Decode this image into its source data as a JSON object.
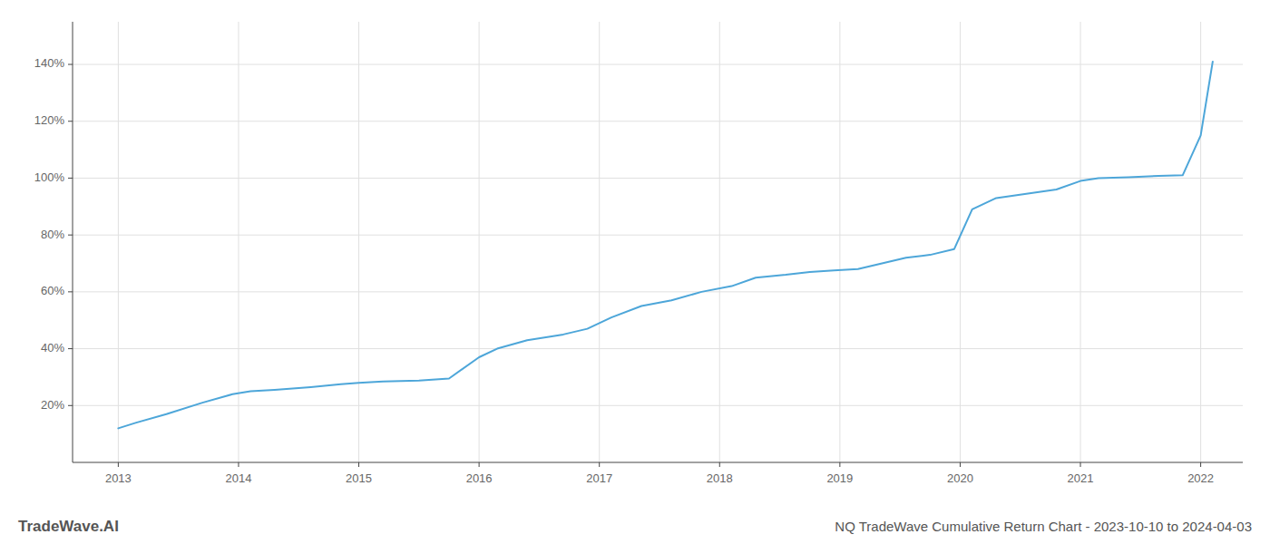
{
  "chart_data": {
    "type": "line",
    "title": "NQ TradeWave Cumulative Return Chart - 2023-10-10 to 2024-04-03",
    "annotations": [
      "TradeWave.AI"
    ],
    "x": [
      2013.0,
      2013.15,
      2013.4,
      2013.7,
      2013.95,
      2014.1,
      2014.3,
      2014.6,
      2014.85,
      2015.0,
      2015.2,
      2015.5,
      2015.75,
      2016.0,
      2016.15,
      2016.4,
      2016.7,
      2016.9,
      2017.1,
      2017.35,
      2017.6,
      2017.85,
      2018.1,
      2018.3,
      2018.55,
      2018.75,
      2018.95,
      2019.15,
      2019.35,
      2019.55,
      2019.75,
      2019.95,
      2020.1,
      2020.3,
      2020.55,
      2020.8,
      2021.0,
      2021.15,
      2021.4,
      2021.65,
      2021.85,
      2022.0,
      2022.1
    ],
    "values": [
      12,
      14,
      17,
      21,
      24,
      25,
      25.5,
      26.5,
      27.5,
      28,
      28.5,
      28.8,
      29.5,
      37,
      40,
      43,
      45,
      47,
      51,
      55,
      57,
      60,
      62,
      65,
      66,
      67,
      67.5,
      68,
      70,
      72,
      73,
      75,
      89,
      93,
      94.5,
      96,
      99,
      100,
      100.3,
      100.8,
      101,
      115,
      141
    ],
    "color": "#4da6d9",
    "xlim": [
      2012.62,
      2022.35
    ],
    "xticks": [
      2013,
      2014,
      2015,
      2016,
      2017,
      2018,
      2019,
      2020,
      2021,
      2022
    ],
    "ylim": [
      0,
      155
    ],
    "yticks": [
      {
        "value": 20,
        "label": "20%"
      },
      {
        "value": 40,
        "label": "40%"
      },
      {
        "value": 60,
        "label": "60%"
      },
      {
        "value": 80,
        "label": "80%"
      },
      {
        "value": 100,
        "label": "100%"
      },
      {
        "value": 120,
        "label": "120%"
      },
      {
        "value": 140,
        "label": "140%"
      }
    ],
    "grid": true
  }
}
